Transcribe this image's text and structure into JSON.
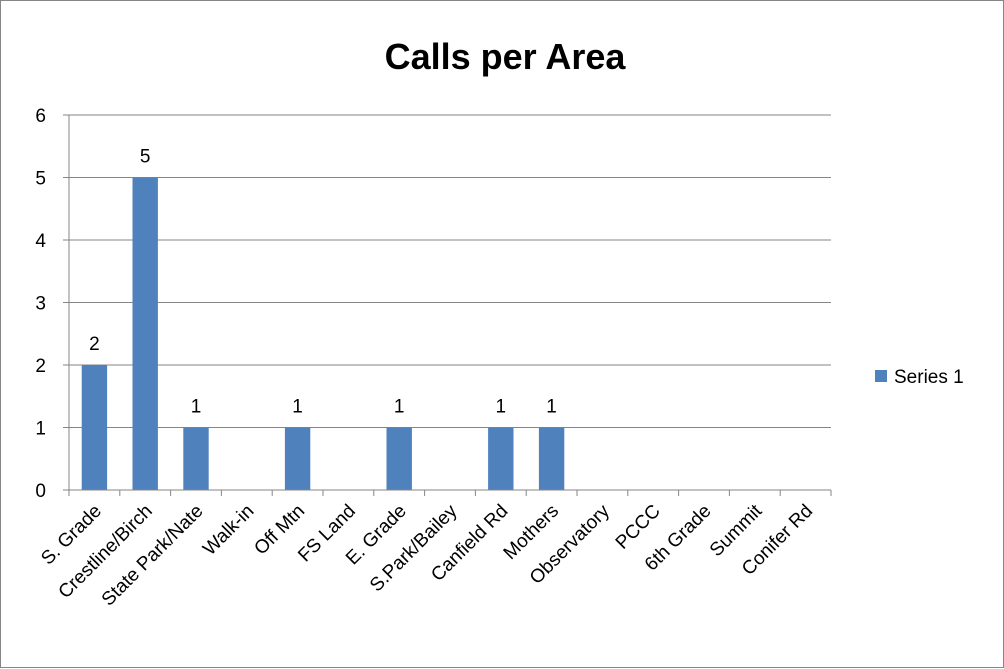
{
  "chart_data": {
    "type": "bar",
    "title": "Calls per Area",
    "xlabel": "",
    "ylabel": "",
    "categories": [
      "S. Grade",
      "Crestline/Birch",
      "State Park/Nate",
      "Walk-in",
      "Off Mtn",
      "FS Land",
      "E. Grade",
      "S.Park/Bailey",
      "Canfield Rd",
      "Mothers",
      "Observatory",
      "PCCC",
      "6th Grade",
      "Summit",
      "Conifer Rd"
    ],
    "series": [
      {
        "name": "Series 1",
        "values": [
          2,
          5,
          1,
          null,
          1,
          null,
          1,
          null,
          1,
          1,
          null,
          null,
          null,
          null,
          null
        ],
        "color": "#4f81bd"
      }
    ],
    "data_labels": [
      "2",
      "5",
      "1",
      "",
      "1",
      "",
      "1",
      "",
      "1",
      "1",
      "",
      "",
      "",
      "",
      ""
    ],
    "ylim": [
      0,
      6
    ],
    "yticks": [
      "0",
      "1",
      "2",
      "3",
      "4",
      "5",
      "6"
    ],
    "grid": true,
    "legend": "right",
    "axis_color": "#868686",
    "grid_color": "#868686"
  }
}
